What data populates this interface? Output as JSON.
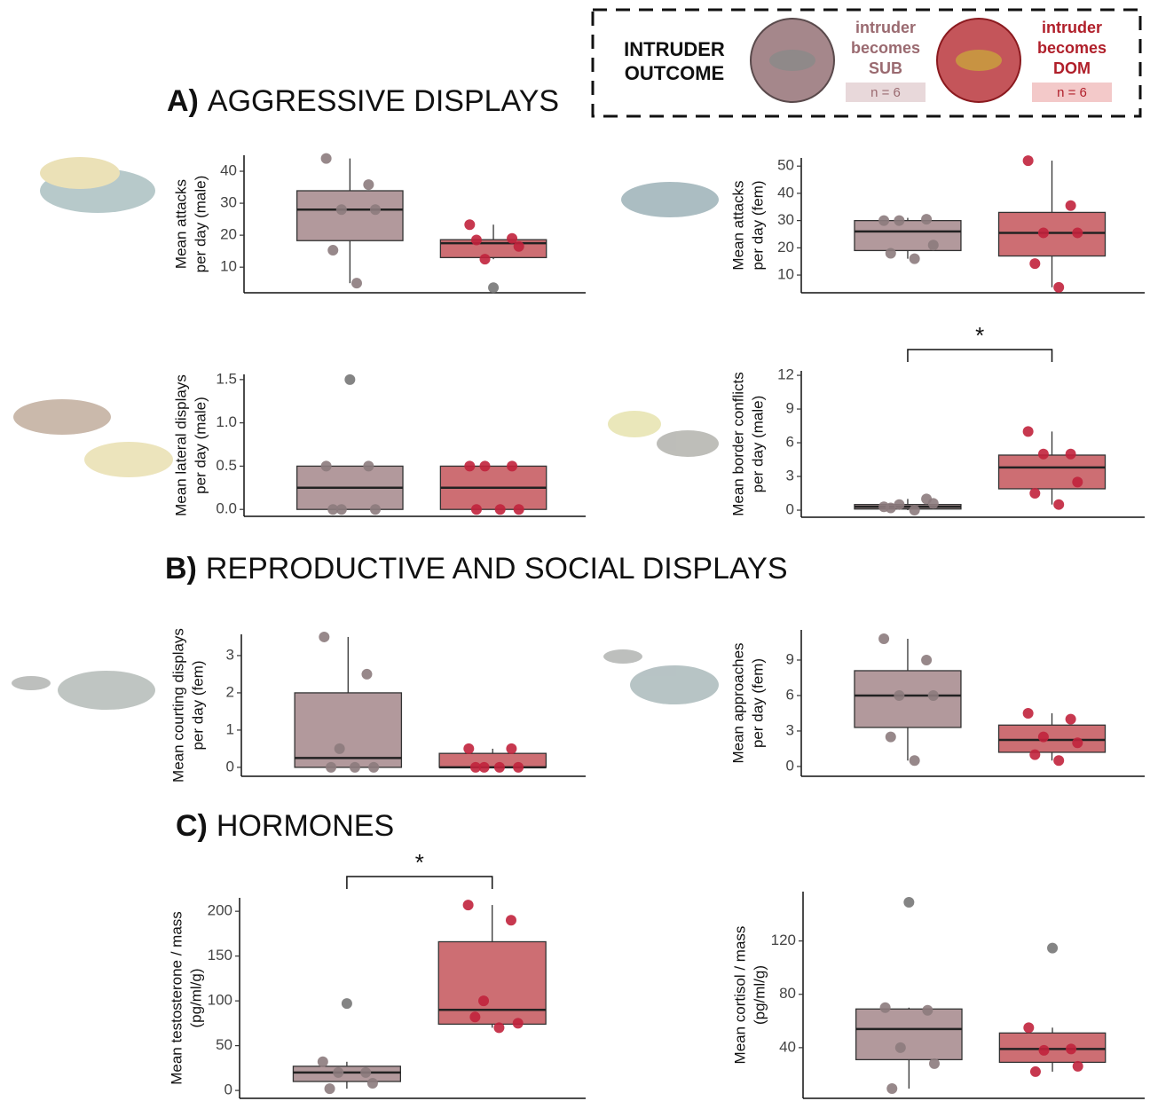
{
  "legend": {
    "title": [
      "INTRUDER",
      "OUTCOME"
    ],
    "groups": [
      {
        "label": [
          "intruder",
          "becomes",
          "SUB"
        ],
        "n": "n = 6",
        "color": "#a5878b",
        "text_color": "#9a6a70",
        "point_color": "#8c7b7d",
        "badge_color": "#e8d8da"
      },
      {
        "label": [
          "intruder",
          "becomes",
          "DOM"
        ],
        "n": "n = 6",
        "color": "#c4555a",
        "text_color": "#b01f2a",
        "point_color": "#c1223c",
        "badge_color": "#f3c9c9"
      }
    ]
  },
  "sections": [
    {
      "label": "A)",
      "title": "AGGRESSIVE DISPLAYS"
    },
    {
      "label": "B)",
      "title": "REPRODUCTIVE AND SOCIAL DISPLAYS"
    },
    {
      "label": "C)",
      "title": "HORMONES"
    }
  ],
  "chart_data": [
    {
      "type": "box",
      "ylabel": [
        "Mean attacks",
        "per day (male)"
      ],
      "ylim": [
        2,
        45
      ],
      "yticks": [
        10,
        20,
        30,
        40
      ],
      "groups": [
        {
          "box": {
            "whisker_low": 5,
            "q1": 18.3,
            "median": 28,
            "q3": 33.9,
            "whisker_high": 44
          },
          "points": [
            44,
            35.8,
            28,
            28,
            15.3,
            5
          ],
          "outliers": []
        },
        {
          "box": {
            "whisker_low": 12.5,
            "q1": 13,
            "median": 17.5,
            "q3": 18.6,
            "whisker_high": 23.3
          },
          "points": [
            23.3,
            19,
            12.5,
            16.5,
            18.5
          ],
          "outliers": [
            3.6
          ]
        }
      ]
    },
    {
      "type": "box",
      "ylabel": [
        "Mean attacks",
        "per day (fem)"
      ],
      "ylim": [
        3.5,
        53
      ],
      "yticks": [
        10,
        20,
        30,
        40,
        50
      ],
      "groups": [
        {
          "box": {
            "whisker_low": 16,
            "q1": 19,
            "median": 26,
            "q3": 30,
            "whisker_high": 31
          },
          "points": [
            30,
            30.5,
            30,
            21,
            18,
            16
          ],
          "outliers": []
        },
        {
          "box": {
            "whisker_low": 5.5,
            "q1": 17,
            "median": 25.5,
            "q3": 33,
            "whisker_high": 52
          },
          "points": [
            52,
            35.5,
            25.5,
            25.5,
            14.2,
            5.5
          ],
          "outliers": []
        }
      ]
    },
    {
      "type": "box",
      "ylabel": [
        "Mean lateral displays",
        "per day (male)"
      ],
      "ylim": [
        -0.08,
        1.56
      ],
      "yticks": [
        {
          "value": 0,
          "label": "0.0"
        },
        {
          "value": 0.5,
          "label": "0.5"
        },
        {
          "value": 1,
          "label": "1.0"
        },
        {
          "value": 1.5,
          "label": "1.5"
        }
      ],
      "groups": [
        {
          "box": {
            "whisker_low": 0,
            "q1": 0,
            "median": 0.25,
            "q3": 0.5,
            "whisker_high": 0.5
          },
          "points": [
            0.5,
            0.5,
            0,
            0,
            0
          ],
          "outliers": [
            1.5
          ]
        },
        {
          "box": {
            "whisker_low": 0,
            "q1": 0,
            "median": 0.25,
            "q3": 0.5,
            "whisker_high": 0.5
          },
          "points": [
            0.5,
            0.5,
            0.5,
            0,
            0,
            0
          ],
          "outliers": []
        }
      ]
    },
    {
      "type": "box",
      "ylabel": [
        "Mean border conflicts",
        "per day (male)"
      ],
      "ylim": [
        -0.63,
        12.4
      ],
      "yticks": [
        0,
        3,
        6,
        9,
        12
      ],
      "significance": "*",
      "groups": [
        {
          "box": {
            "whisker_low": 0,
            "q1": 0.1,
            "median": 0.3,
            "q3": 0.5,
            "whisker_high": 1
          },
          "points": [
            0.3,
            1,
            0.5,
            0.6,
            0.2,
            0
          ],
          "outliers": []
        },
        {
          "box": {
            "whisker_low": 0.5,
            "q1": 1.9,
            "median": 3.8,
            "q3": 4.9,
            "whisker_high": 7
          },
          "points": [
            7,
            5,
            5,
            2.5,
            1.5,
            0.5
          ],
          "outliers": []
        }
      ]
    },
    {
      "type": "box",
      "ylabel": [
        "Mean courting displays",
        "per day (fem)"
      ],
      "ylim": [
        -0.24,
        3.57
      ],
      "yticks": [
        0,
        1,
        2,
        3
      ],
      "groups": [
        {
          "box": {
            "whisker_low": 0,
            "q1": 0,
            "median": 0.25,
            "q3": 2,
            "whisker_high": 3.5
          },
          "points": [
            3.5,
            2.5,
            0.5,
            0,
            0,
            0
          ],
          "outliers": []
        },
        {
          "box": {
            "whisker_low": 0,
            "q1": 0,
            "median": 0,
            "q3": 0.375,
            "whisker_high": 0.5
          },
          "points": [
            0.5,
            0.5,
            0,
            0,
            0,
            0
          ],
          "outliers": []
        }
      ]
    },
    {
      "type": "box",
      "ylabel": [
        "Mean approaches",
        "per day (fem)"
      ],
      "ylim": [
        -0.83,
        11.55
      ],
      "yticks": [
        0,
        3,
        6,
        9
      ],
      "groups": [
        {
          "box": {
            "whisker_low": 0.5,
            "q1": 3.3,
            "median": 6,
            "q3": 8.1,
            "whisker_high": 10.8
          },
          "points": [
            10.8,
            9,
            6,
            6,
            2.5,
            0.5
          ],
          "outliers": []
        },
        {
          "box": {
            "whisker_low": 0.5,
            "q1": 1.2,
            "median": 2.25,
            "q3": 3.5,
            "whisker_high": 4.5
          },
          "points": [
            4.5,
            4,
            2.5,
            2,
            1,
            0.5
          ],
          "outliers": []
        }
      ]
    },
    {
      "type": "box",
      "ylabel": [
        "Mean testosterone / mass",
        "(pg/ml/g)"
      ],
      "ylim": [
        -8.8,
        215
      ],
      "yticks": [
        0,
        50,
        100,
        150,
        200
      ],
      "significance": "*",
      "groups": [
        {
          "box": {
            "whisker_low": 2,
            "q1": 10,
            "median": 20,
            "q3": 27,
            "whisker_high": 32
          },
          "points": [
            32,
            20,
            20,
            8,
            2
          ],
          "outliers": [
            97
          ]
        },
        {
          "box": {
            "whisker_low": 70,
            "q1": 74,
            "median": 90,
            "q3": 166,
            "whisker_high": 207
          },
          "points": [
            207,
            190,
            100,
            75,
            82,
            70
          ],
          "outliers": []
        }
      ]
    },
    {
      "type": "box",
      "ylabel": [
        "Mean cortisol / mass",
        "(pg/ml/g)"
      ],
      "ylim": [
        2,
        157
      ],
      "yticks": [
        40,
        80,
        120
      ],
      "groups": [
        {
          "box": {
            "whisker_low": 9.3,
            "q1": 31,
            "median": 54,
            "q3": 69,
            "whisker_high": 70
          },
          "points": [
            70,
            68,
            40,
            28,
            9.3
          ],
          "outliers": [
            149
          ]
        },
        {
          "box": {
            "whisker_low": 22,
            "q1": 29,
            "median": 39,
            "q3": 51,
            "whisker_high": 55
          },
          "points": [
            55,
            39,
            38,
            26,
            22
          ],
          "outliers": [
            114.7
          ]
        }
      ]
    }
  ]
}
